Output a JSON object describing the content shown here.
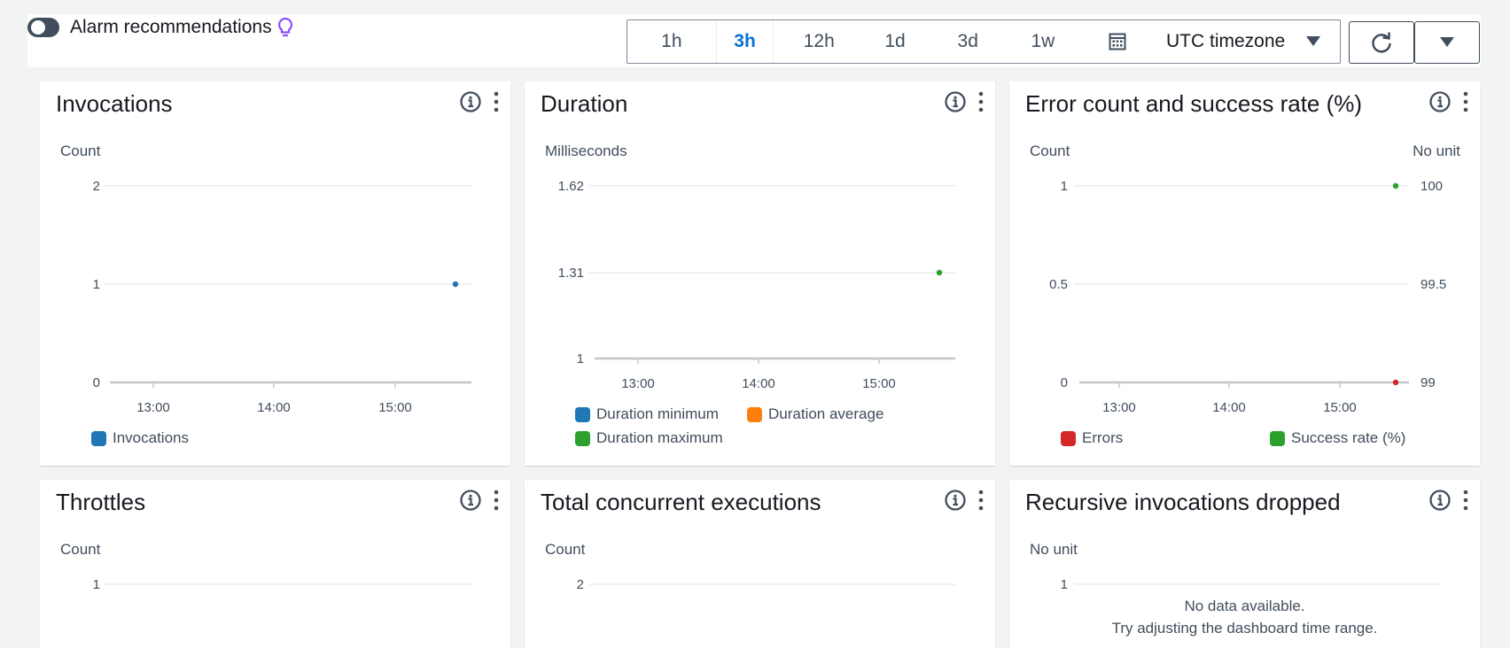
{
  "toolbar": {
    "alarm_label": "Alarm recommendations",
    "ranges": [
      "1h",
      "3h",
      "12h",
      "1d",
      "3d",
      "1w"
    ],
    "active_range": "3h",
    "timezone": "UTC timezone"
  },
  "colors": {
    "blue": "#1f77b4",
    "orange": "#ff7f0e",
    "green": "#2ca02c",
    "red": "#d62728",
    "grid": "#e9ebed",
    "axis": "#c6c6cd"
  },
  "charts": {
    "invocations": {
      "title": "Invocations",
      "unit": "Count",
      "legend": [
        "Invocations"
      ]
    },
    "duration": {
      "title": "Duration",
      "unit": "Milliseconds",
      "legend": [
        "Duration minimum",
        "Duration average",
        "Duration maximum"
      ]
    },
    "errors": {
      "title": "Error count and success rate (%)",
      "unit_left": "Count",
      "unit_right": "No unit",
      "legend": [
        "Errors",
        "Success rate (%)"
      ]
    },
    "throttles": {
      "title": "Throttles",
      "unit": "Count"
    },
    "concurrent": {
      "title": "Total concurrent executions",
      "unit": "Count"
    },
    "recursive": {
      "title": "Recursive invocations dropped",
      "unit": "No unit",
      "nodata_line1": "No data available.",
      "nodata_line2": "Try adjusting the dashboard time range."
    }
  },
  "chart_data": [
    {
      "type": "scatter",
      "title": "Invocations",
      "ylabel": "Count",
      "ylim": [
        0,
        2
      ],
      "yticks": [
        "0",
        "1",
        "2"
      ],
      "xticks": [
        "13:00",
        "14:00",
        "15:00"
      ],
      "series": [
        {
          "name": "Invocations",
          "color": "#1f77b4",
          "points": [
            {
              "x": "15:30",
              "y": 1
            }
          ]
        }
      ]
    },
    {
      "type": "scatter",
      "title": "Duration",
      "ylabel": "Milliseconds",
      "ylim": [
        1,
        1.62
      ],
      "yticks": [
        "1",
        "1.31",
        "1.62"
      ],
      "xticks": [
        "13:00",
        "14:00",
        "15:00"
      ],
      "series": [
        {
          "name": "Duration minimum",
          "color": "#1f77b4",
          "points": []
        },
        {
          "name": "Duration average",
          "color": "#ff7f0e",
          "points": []
        },
        {
          "name": "Duration maximum",
          "color": "#2ca02c",
          "points": [
            {
              "x": "15:30",
              "y": 1.31
            }
          ]
        }
      ]
    },
    {
      "type": "scatter",
      "title": "Error count and success rate (%)",
      "ylabel": "Count",
      "y2label": "No unit",
      "ylim": [
        0,
        1
      ],
      "yticks": [
        "0",
        "0.5",
        "1"
      ],
      "y2lim": [
        99,
        100
      ],
      "y2ticks": [
        "99",
        "99.5",
        "100"
      ],
      "xticks": [
        "13:00",
        "14:00",
        "15:00"
      ],
      "series": [
        {
          "name": "Errors",
          "color": "#d62728",
          "axis": "left",
          "points": [
            {
              "x": "15:30",
              "y": 0
            }
          ]
        },
        {
          "name": "Success rate (%)",
          "color": "#2ca02c",
          "axis": "right",
          "points": [
            {
              "x": "15:30",
              "y": 100
            }
          ]
        }
      ]
    },
    {
      "type": "line",
      "title": "Throttles",
      "ylabel": "Count",
      "yticks": [
        "1"
      ],
      "series": []
    },
    {
      "type": "line",
      "title": "Total concurrent executions",
      "ylabel": "Count",
      "yticks": [
        "2"
      ],
      "series": []
    },
    {
      "type": "line",
      "title": "Recursive invocations dropped",
      "ylabel": "No unit",
      "yticks": [
        "1"
      ],
      "series": []
    }
  ]
}
